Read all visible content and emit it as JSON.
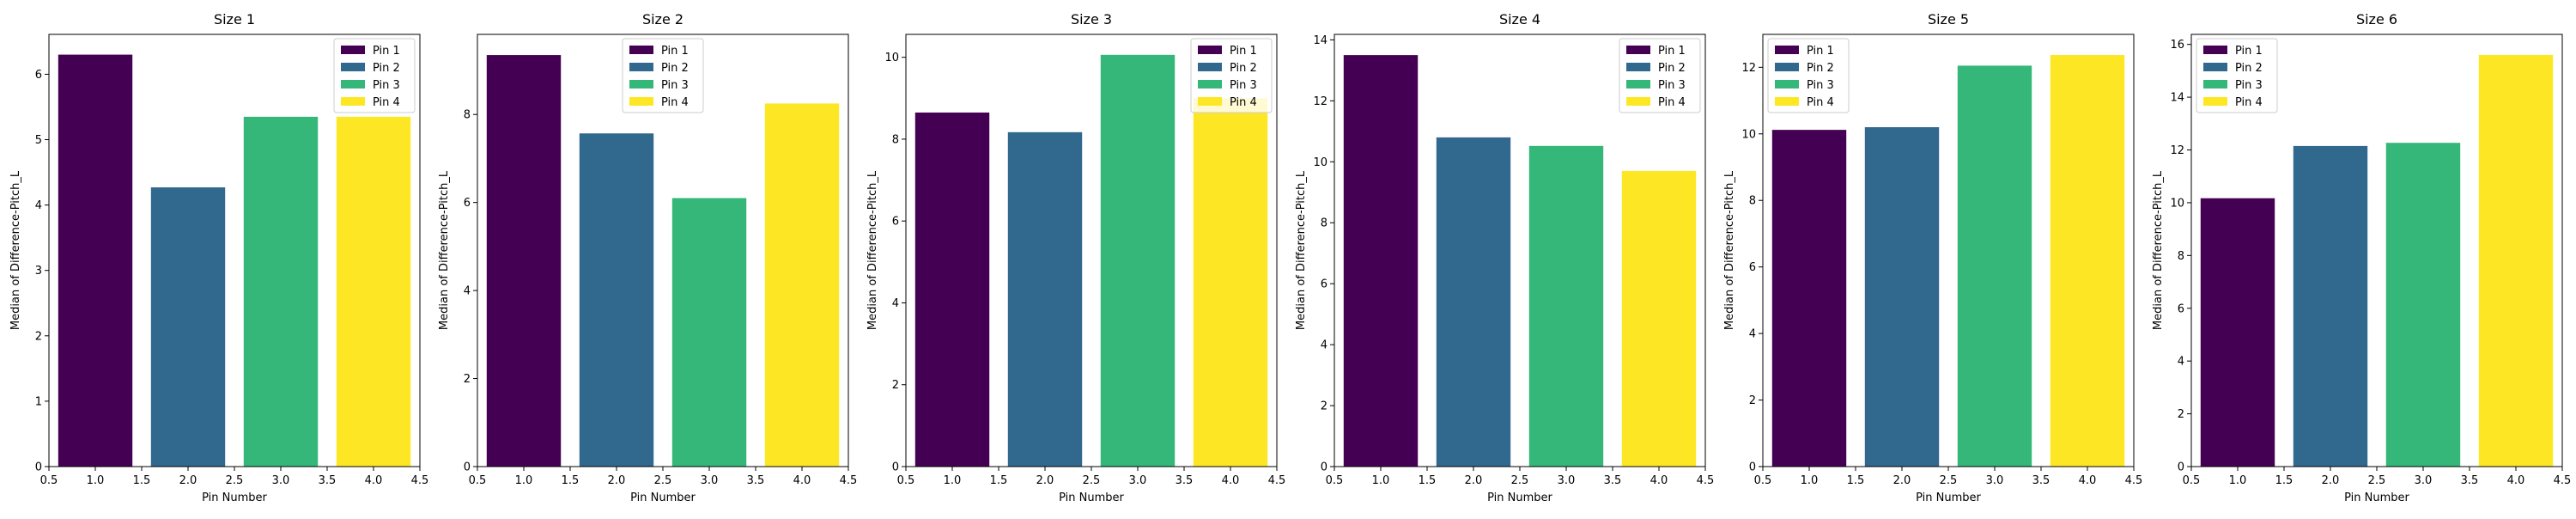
{
  "colors": {
    "pin1": "#440154",
    "pin2": "#31688e",
    "pin3": "#35b779",
    "pin4": "#fde725"
  },
  "chart_data": [
    {
      "type": "bar",
      "title": "Size 1",
      "xlabel": "Pin Number",
      "ylabel": "Median of Difference-Pitch_L",
      "x": [
        1.0,
        2.0,
        3.0,
        4.0
      ],
      "values": [
        6.3,
        4.27,
        5.35,
        5.35
      ],
      "series_names": [
        "Pin 1",
        "Pin 2",
        "Pin 3",
        "Pin 4"
      ],
      "xlim": [
        0.5,
        4.5
      ],
      "xticks": [
        "0.5",
        "1.0",
        "1.5",
        "2.0",
        "2.5",
        "3.0",
        "3.5",
        "4.0",
        "4.5"
      ],
      "ylim": [
        0,
        6.61
      ],
      "yticks": [
        0,
        1,
        2,
        3,
        4,
        5,
        6
      ],
      "legend": "top-right",
      "grid": false
    },
    {
      "type": "bar",
      "title": "Size 2",
      "xlabel": "Pin Number",
      "ylabel": "Median of Difference-Pitch_L",
      "x": [
        1.0,
        2.0,
        3.0,
        4.0
      ],
      "values": [
        9.35,
        7.57,
        6.1,
        8.25
      ],
      "series_names": [
        "Pin 1",
        "Pin 2",
        "Pin 3",
        "Pin 4"
      ],
      "xlim": [
        0.5,
        4.5
      ],
      "xticks": [
        "0.5",
        "1.0",
        "1.5",
        "2.0",
        "2.5",
        "3.0",
        "3.5",
        "4.0",
        "4.5"
      ],
      "ylim": [
        0,
        9.82
      ],
      "yticks": [
        0,
        2,
        4,
        6,
        8
      ],
      "legend": "top-center",
      "grid": false
    },
    {
      "type": "bar",
      "title": "Size 3",
      "xlabel": "Pin Number",
      "ylabel": "Median of Difference-Pitch_L",
      "x": [
        1.0,
        2.0,
        3.0,
        4.0
      ],
      "values": [
        8.65,
        8.17,
        10.06,
        9.0
      ],
      "series_names": [
        "Pin 1",
        "Pin 2",
        "Pin 3",
        "Pin 4"
      ],
      "xlim": [
        0.5,
        4.5
      ],
      "xticks": [
        "0.5",
        "1.0",
        "1.5",
        "2.0",
        "2.5",
        "3.0",
        "3.5",
        "4.0",
        "4.5"
      ],
      "ylim": [
        0,
        10.56
      ],
      "yticks": [
        0,
        2,
        4,
        6,
        8,
        10
      ],
      "legend": "top-right",
      "grid": false
    },
    {
      "type": "bar",
      "title": "Size 4",
      "xlabel": "Pin Number",
      "ylabel": "Median of Difference-Pitch_L",
      "x": [
        1.0,
        2.0,
        3.0,
        4.0
      ],
      "values": [
        13.5,
        10.8,
        10.52,
        9.7
      ],
      "series_names": [
        "Pin 1",
        "Pin 2",
        "Pin 3",
        "Pin 4"
      ],
      "xlim": [
        0.5,
        4.5
      ],
      "xticks": [
        "0.5",
        "1.0",
        "1.5",
        "2.0",
        "2.5",
        "3.0",
        "3.5",
        "4.0",
        "4.5"
      ],
      "ylim": [
        0,
        14.18
      ],
      "yticks": [
        0,
        2,
        4,
        6,
        8,
        10,
        12,
        14
      ],
      "legend": "top-right",
      "grid": false
    },
    {
      "type": "bar",
      "title": "Size 5",
      "xlabel": "Pin Number",
      "ylabel": "Median of Difference-Pitch_L",
      "x": [
        1.0,
        2.0,
        3.0,
        4.0
      ],
      "values": [
        10.12,
        10.2,
        12.05,
        12.37
      ],
      "series_names": [
        "Pin 1",
        "Pin 2",
        "Pin 3",
        "Pin 4"
      ],
      "xlim": [
        0.5,
        4.5
      ],
      "xticks": [
        "0.5",
        "1.0",
        "1.5",
        "2.0",
        "2.5",
        "3.0",
        "3.5",
        "4.0",
        "4.5"
      ],
      "ylim": [
        0,
        12.99
      ],
      "yticks": [
        0,
        2,
        4,
        6,
        8,
        10,
        12
      ],
      "legend": "top-left",
      "grid": false
    },
    {
      "type": "bar",
      "title": "Size 6",
      "xlabel": "Pin Number",
      "ylabel": "Median of Difference-Pitch_L",
      "x": [
        1.0,
        2.0,
        3.0,
        4.0
      ],
      "values": [
        10.17,
        12.15,
        12.27,
        15.6
      ],
      "series_names": [
        "Pin 1",
        "Pin 2",
        "Pin 3",
        "Pin 4"
      ],
      "xlim": [
        0.5,
        4.5
      ],
      "xticks": [
        "0.5",
        "1.0",
        "1.5",
        "2.0",
        "2.5",
        "3.0",
        "3.5",
        "4.0",
        "4.5"
      ],
      "ylim": [
        0,
        16.38
      ],
      "yticks": [
        0,
        2,
        4,
        6,
        8,
        10,
        12,
        14,
        16
      ],
      "legend": "top-left",
      "grid": false
    }
  ]
}
